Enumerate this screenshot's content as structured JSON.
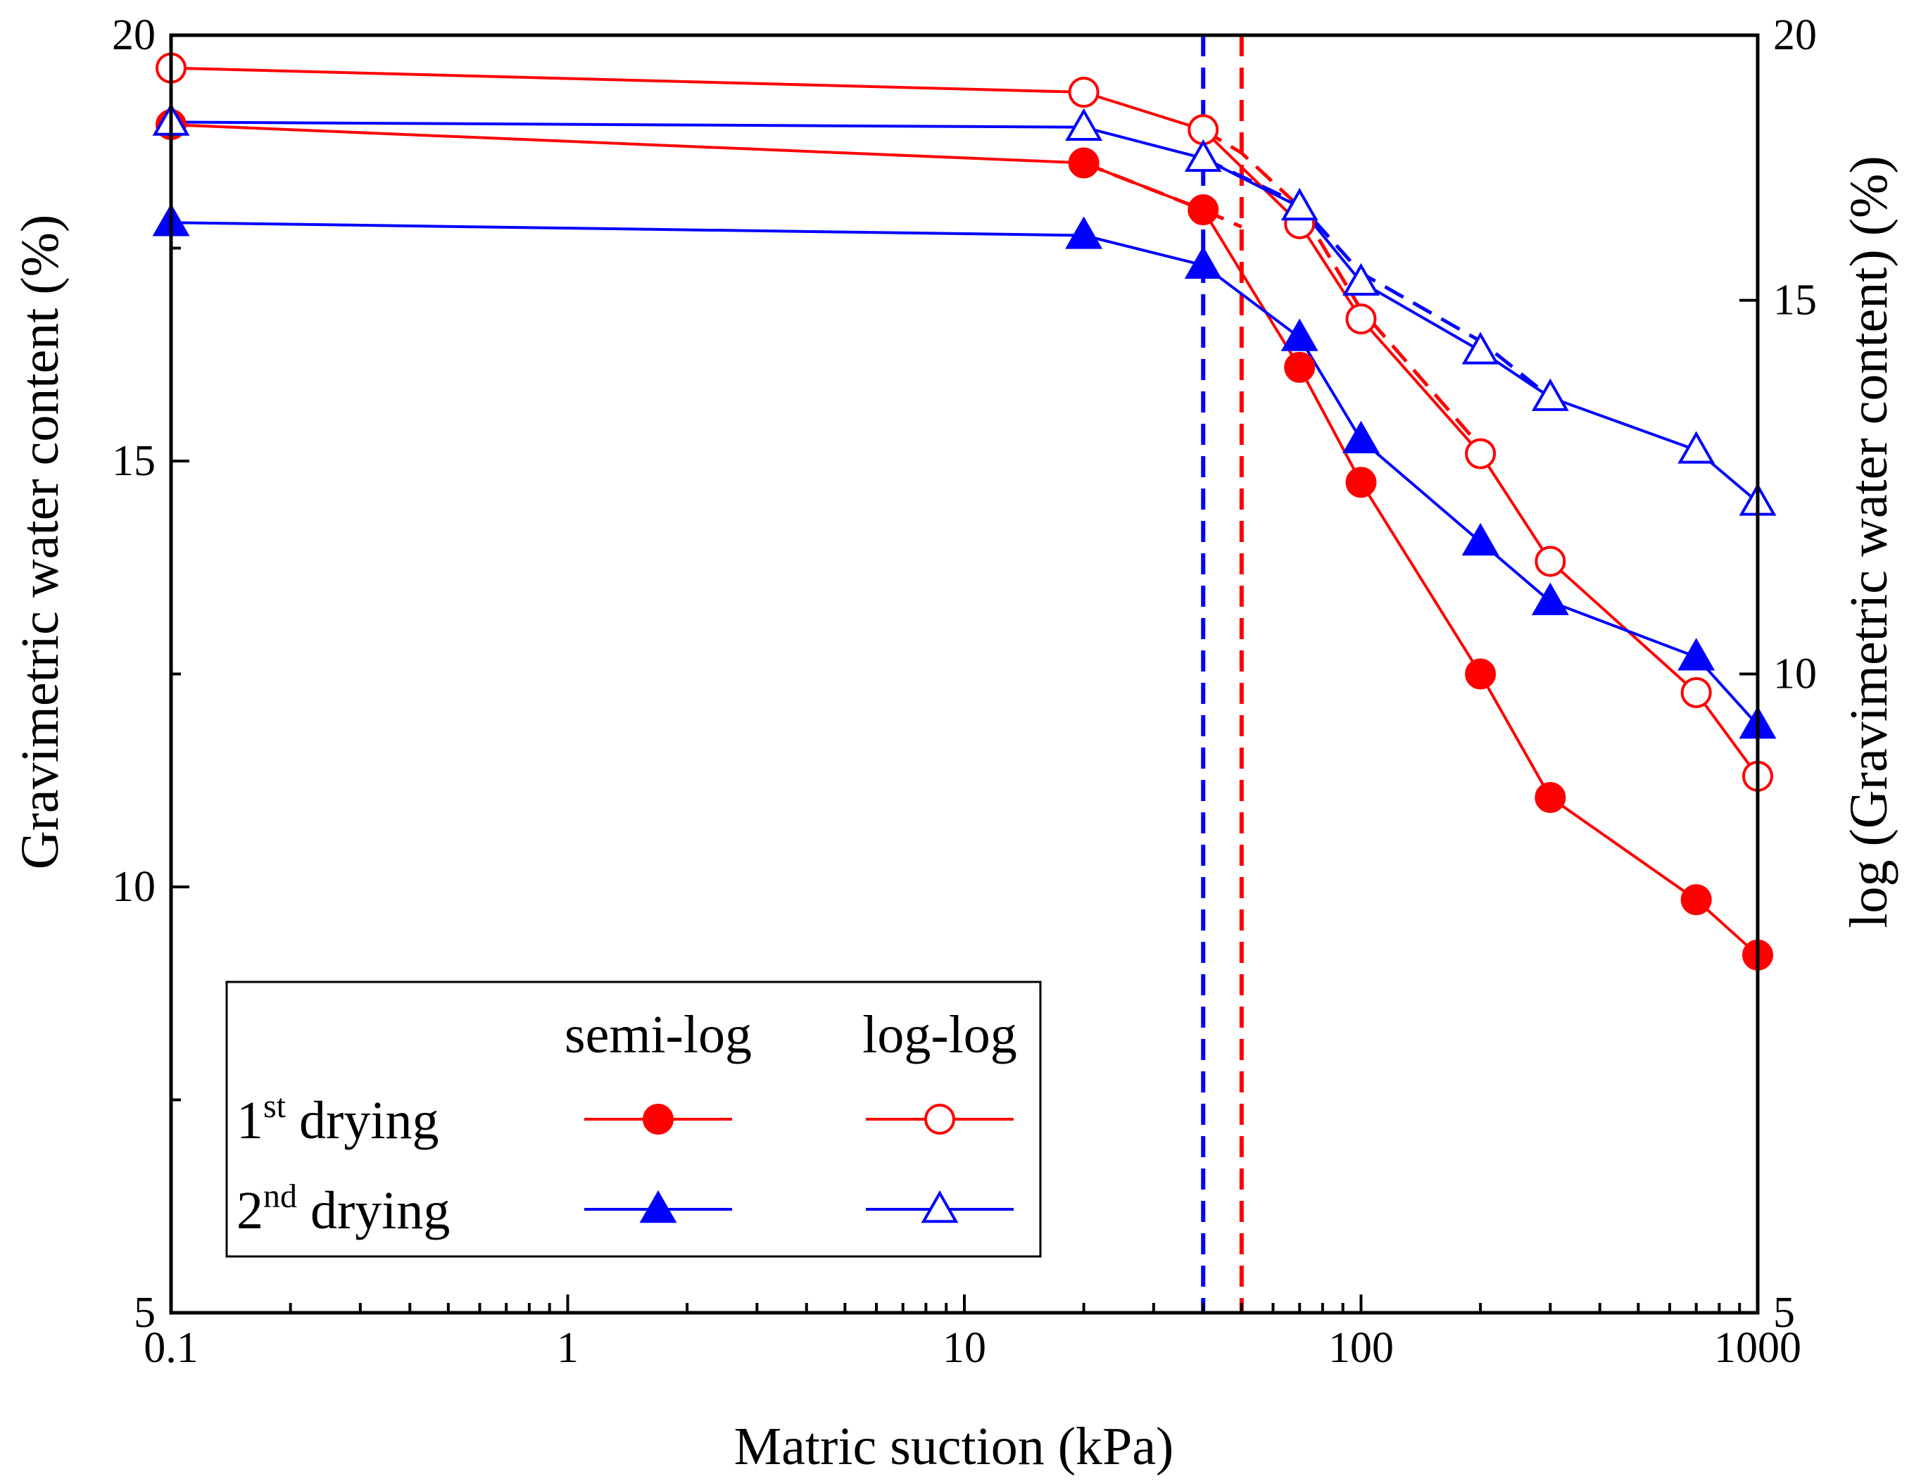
{
  "chart_data": {
    "type": "line",
    "xscale": "log",
    "xlim": [
      0.1,
      1000
    ],
    "ylim": [
      5,
      20
    ],
    "xlabel": "Matric suction (kPa)",
    "ylabel": "Gravimetric water content (%)",
    "y2label": "log (Gravimetric water content) (%)",
    "x_ticks": [
      {
        "value": 0.1,
        "label": "0.1"
      },
      {
        "value": 1,
        "label": "1"
      },
      {
        "value": 10,
        "label": "10"
      },
      {
        "value": 100,
        "label": "100"
      },
      {
        "value": 1000,
        "label": "1000"
      }
    ],
    "y_ticks": [
      {
        "value": 5,
        "label": "5"
      },
      {
        "value": 10,
        "label": "10"
      },
      {
        "value": 15,
        "label": "15"
      },
      {
        "value": 20,
        "label": "20"
      }
    ],
    "y2_ticks": [
      {
        "value": 5,
        "label": "5"
      },
      {
        "value": 10,
        "label": "10"
      },
      {
        "value": 15,
        "label": "15"
      },
      {
        "value": 20,
        "label": "20"
      }
    ],
    "series": [
      {
        "name": "1st drying semi-log",
        "axis": "left",
        "color": "#ff0000",
        "marker": "circle-filled",
        "x": [
          0.1,
          20,
          40,
          70,
          100,
          200,
          300,
          700,
          1000
        ],
        "y": [
          18.95,
          18.5,
          17.95,
          16.1,
          14.75,
          12.5,
          11.05,
          9.85,
          9.2
        ]
      },
      {
        "name": "1st drying log-log",
        "axis": "right",
        "color": "#ff0000",
        "marker": "circle-open",
        "x": [
          0.1,
          20,
          40,
          70,
          100,
          200,
          300,
          700,
          1000
        ],
        "y": [
          19.3,
          18.8,
          18.05,
          16.3,
          14.7,
          12.7,
          11.3,
          9.8,
          8.95
        ]
      },
      {
        "name": "2nd drying semi-log",
        "axis": "left",
        "color": "#0000ff",
        "marker": "triangle-filled",
        "x": [
          0.1,
          20,
          40,
          70,
          100,
          200,
          300,
          700,
          1000
        ],
        "y": [
          17.8,
          17.65,
          17.3,
          16.45,
          15.25,
          14.05,
          13.35,
          12.7,
          11.9
        ]
      },
      {
        "name": "2nd drying log-log",
        "axis": "right",
        "color": "#0000ff",
        "marker": "triangle-open",
        "x": [
          0.1,
          20,
          40,
          70,
          100,
          200,
          300,
          700,
          1000
        ],
        "y": [
          18.2,
          18.1,
          17.5,
          16.6,
          15.3,
          14.2,
          13.5,
          12.75,
          12.05
        ]
      }
    ],
    "dashed_segments": [
      {
        "color": "#ff0000",
        "axis": "left",
        "x": [
          20,
          40,
          50
        ],
        "y": [
          18.5,
          17.95,
          17.75
        ]
      },
      {
        "color": "#ff0000",
        "axis": "right",
        "x": [
          40,
          50,
          70,
          100,
          200
        ],
        "y": [
          18.05,
          17.6,
          16.6,
          14.85,
          12.8
        ]
      },
      {
        "color": "#0000ff",
        "axis": "right",
        "x": [
          40,
          70,
          100,
          200,
          300
        ],
        "y": [
          17.5,
          16.65,
          15.45,
          14.35,
          13.5
        ]
      }
    ],
    "reference_lines": [
      {
        "x": 40,
        "color": "#0000ff",
        "style": "dashed"
      },
      {
        "x": 50,
        "color": "#ff0000",
        "style": "dashed"
      }
    ],
    "legend": {
      "position": "bottom-left",
      "col_headers": [
        "semi-log",
        "log-log"
      ],
      "rows": [
        {
          "base": "1",
          "sup": "st",
          "tail": " drying"
        },
        {
          "base": "2",
          "sup": "nd",
          "tail": " drying"
        }
      ]
    }
  }
}
